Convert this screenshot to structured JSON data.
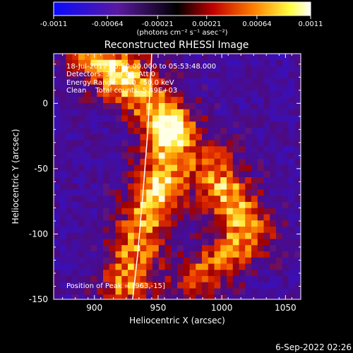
{
  "colorbar": {
    "tick_labels": [
      "-0.0011",
      "-0.00064",
      "-0.00021",
      "0.00021",
      "0.00064",
      "0.0011"
    ],
    "tick_values": [
      -0.0011,
      -0.00064,
      -0.00021,
      0.00021,
      0.00064,
      0.0011
    ],
    "range": [
      -0.0011,
      0.0011
    ],
    "units_label": "(photons cm⁻² s⁻¹ asec⁻²)",
    "colors": {
      "low": "#1a1aff",
      "mid": "#000000",
      "high": "#ffffff"
    }
  },
  "chart_data": {
    "type": "heatmap",
    "title": "Reconstructed RHESSI Image",
    "xlabel": "Heliocentric X (arcsec)",
    "ylabel": "Heliocentric Y (arcsec)",
    "xlim": [
      868,
      1062
    ],
    "ylim": [
      -150,
      38
    ],
    "x_ticks": [
      900,
      950,
      1000,
      1050
    ],
    "y_ticks": [
      0,
      -50,
      -100,
      -150
    ],
    "x_tick_labels": [
      "900",
      "950",
      "1000",
      "1050"
    ],
    "y_tick_labels": [
      "0",
      "-50",
      "-100",
      "-150"
    ],
    "colormap": "hot-positive / blue-negative",
    "emission_regions": [
      {
        "center": [
          960,
          -20
        ],
        "note": "brightest core"
      },
      {
        "center": [
          950,
          -70
        ]
      },
      {
        "center": [
          1000,
          -70
        ]
      },
      {
        "center": [
          1010,
          -95
        ]
      },
      {
        "center": [
          920,
          20
        ]
      }
    ],
    "peak_position": [
      963,
      -15
    ],
    "limb_curve": {
      "x": [
        945,
        942,
        938,
        934,
        930
      ],
      "y": [
        38,
        -20,
        -70,
        -115,
        -150
      ]
    }
  },
  "annotations": {
    "time_range": "18-Jul-2017 05:50:00.000 to 05:53:48.000",
    "detectors": "Detectors: 3F of 8F, Att 0",
    "energy": "Energy Range: 25.0 - 50.0 keV",
    "method": "Clean    Total counts: 5.49E+03",
    "peak_label": "Position of Peak = [963,-15]"
  },
  "footer": {
    "timestamp": "6-Sep-2022 02:26"
  }
}
